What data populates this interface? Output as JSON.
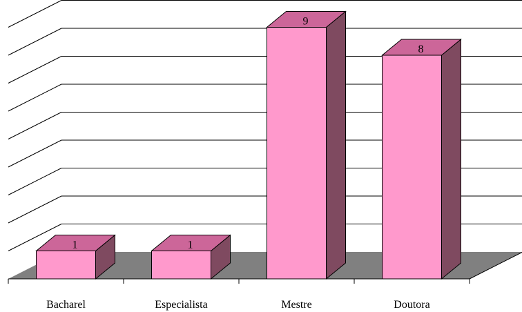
{
  "chart_data": {
    "type": "bar",
    "style": "3d-column",
    "categories": [
      "Bacharel",
      "Especialista",
      "Mestre",
      "Doutora"
    ],
    "values": [
      1,
      1,
      9,
      8
    ],
    "data_labels": [
      "1",
      "1",
      "9",
      "8"
    ],
    "title": "",
    "xlabel": "",
    "ylabel": "",
    "ylim": [
      0,
      9
    ],
    "grid": true,
    "legend": "none"
  },
  "colors": {
    "bar_front": "#FF99CC",
    "bar_top": "#CC6699",
    "bar_side": "#7F4A60",
    "floor": "#808080",
    "grid": "#000000",
    "background": "#FFFFFF"
  }
}
